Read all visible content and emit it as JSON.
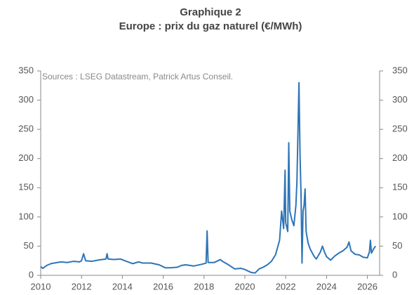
{
  "chart_data": {
    "type": "line",
    "title": "Graphique 2",
    "subtitle": "Europe : prix du gaz naturel (€/MWh)",
    "annotation": "Sources : LSEG Datastream, Patrick Artus Conseil.",
    "color": "#2e75b6",
    "x": [
      2010.0,
      2010.1,
      2010.3,
      2010.5,
      2010.8,
      2011.0,
      2011.3,
      2011.6,
      2011.9,
      2012.0,
      2012.1,
      2012.2,
      2012.5,
      2012.8,
      2013.0,
      2013.2,
      2013.25,
      2013.3,
      2013.6,
      2013.9,
      2014.2,
      2014.5,
      2014.8,
      2015.0,
      2015.4,
      2015.8,
      2016.1,
      2016.4,
      2016.7,
      2016.9,
      2017.1,
      2017.5,
      2017.9,
      2018.1,
      2018.15,
      2018.2,
      2018.5,
      2018.8,
      2018.9,
      2019.2,
      2019.5,
      2019.8,
      2020.0,
      2020.3,
      2020.5,
      2020.7,
      2020.9,
      2021.1,
      2021.3,
      2021.5,
      2021.7,
      2021.8,
      2021.9,
      2021.97,
      2022.0,
      2022.1,
      2022.15,
      2022.2,
      2022.3,
      2022.4,
      2022.5,
      2022.55,
      2022.65,
      2022.7,
      2022.75,
      2022.8,
      2022.85,
      2022.9,
      2022.95,
      2023.0,
      2023.1,
      2023.2,
      2023.4,
      2023.5,
      2023.7,
      2023.8,
      2023.9,
      2024.0,
      2024.2,
      2024.4,
      2024.6,
      2024.8,
      2025.0,
      2025.1,
      2025.2,
      2025.4,
      2025.6,
      2025.8,
      2026.0,
      2026.1,
      2026.15,
      2026.2,
      2026.3,
      2026.4
    ],
    "values": [
      15,
      12,
      17,
      20,
      22,
      23,
      22,
      24,
      23,
      25,
      37,
      25,
      24,
      26,
      27,
      28,
      37,
      28,
      27,
      28,
      24,
      20,
      23,
      21,
      21,
      18,
      13,
      13,
      14,
      17,
      18,
      16,
      19,
      21,
      76,
      22,
      22,
      27,
      24,
      18,
      11,
      12,
      10,
      5,
      4,
      11,
      14,
      18,
      24,
      35,
      60,
      110,
      80,
      180,
      90,
      75,
      227,
      110,
      95,
      85,
      120,
      160,
      330,
      210,
      140,
      21,
      110,
      120,
      148,
      75,
      55,
      45,
      32,
      28,
      40,
      50,
      40,
      32,
      26,
      33,
      38,
      42,
      48,
      57,
      42,
      36,
      35,
      31,
      30,
      40,
      60,
      38,
      45,
      50
    ],
    "xlim": [
      2010,
      2026.6
    ],
    "xticks": [
      2010,
      2012,
      2014,
      2016,
      2018,
      2020,
      2022,
      2024,
      2026
    ],
    "ylim": [
      0,
      350
    ],
    "yticks": [
      0,
      50,
      100,
      150,
      200,
      250,
      300,
      350
    ],
    "y2lim": [
      0,
      350
    ],
    "y2ticks": [
      0,
      50,
      100,
      150,
      200,
      250,
      300,
      350
    ]
  }
}
